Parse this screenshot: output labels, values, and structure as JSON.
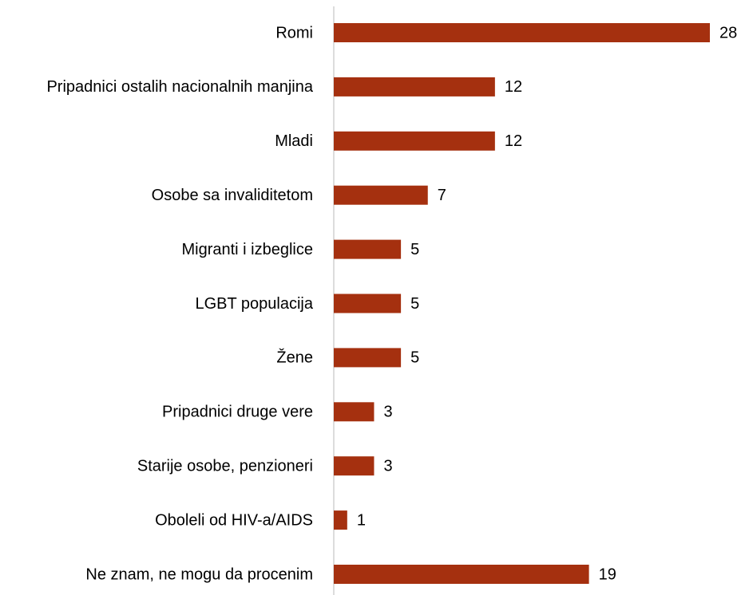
{
  "chart_data": {
    "type": "bar",
    "orientation": "horizontal",
    "categories": [
      "Romi",
      "Pripadnici ostalih nacionalnih manjina",
      "Mladi",
      "Osobe sa invaliditetom",
      "Migranti i izbeglice",
      "LGBT populacija",
      "Žene",
      "Pripadnici druge vere",
      "Starije osobe, penzioneri",
      "Oboleli od HIV-a/AIDS",
      "Ne znam, ne mogu da procenim"
    ],
    "values": [
      28,
      12,
      12,
      7,
      5,
      5,
      5,
      3,
      3,
      1,
      19
    ],
    "color": "#a5300f",
    "xlim": [
      0,
      28
    ]
  }
}
